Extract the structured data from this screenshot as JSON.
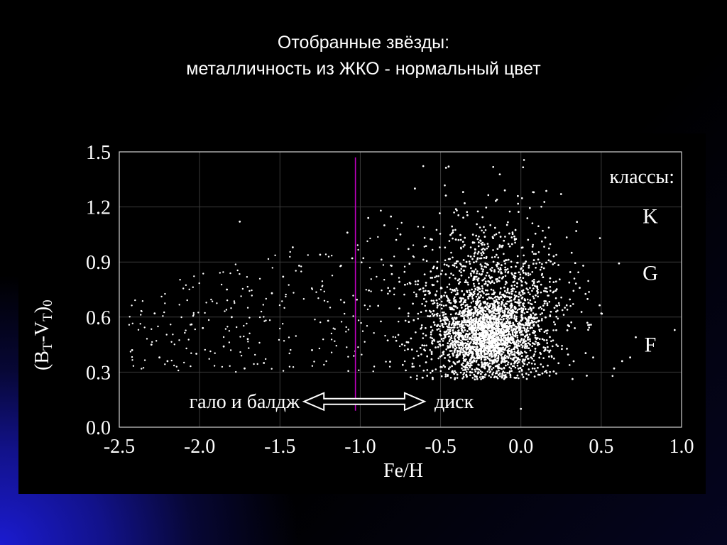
{
  "slide": {
    "title_line1": "Отобранные звёзды:",
    "title_line2": "металличность из ЖКО - нормальный цвет"
  },
  "colors": {
    "background": "#000000",
    "accent_gradient": "#1b1bd0",
    "points": "#ffffff",
    "divider_line": "#c000c0"
  },
  "chart_data": {
    "type": "scatter",
    "xlabel": "Fe/H",
    "ylabel": "(BT-VT)0",
    "xlim": [
      -2.5,
      1.0
    ],
    "ylim": [
      0.0,
      1.5
    ],
    "x_ticks": [
      "-2.5",
      "-2.0",
      "-1.5",
      "-1.0",
      "-0.5",
      "0.0",
      "0.5",
      "1.0"
    ],
    "y_ticks": [
      "0.0",
      "0.3",
      "0.6",
      "0.9",
      "1.2",
      "1.5"
    ],
    "grid": true,
    "divider_x": -1.03,
    "classes_label": "классы:",
    "classes": [
      {
        "label": "K",
        "y": 1.15
      },
      {
        "label": "G",
        "y": 0.84
      },
      {
        "label": "F",
        "y": 0.45
      }
    ],
    "halo_label": "гало и балдж",
    "disk_label": "диск",
    "arrow_x_range": [
      -1.35,
      -0.6
    ],
    "arrow_y": 0.14,
    "series": [
      {
        "cloud_center": [
          -0.2,
          0.55
        ],
        "approx_point_count": 5000,
        "sample_points": [
          [
            -2.42,
            0.42
          ],
          [
            -2.3,
            0.45
          ],
          [
            -2.28,
            0.62
          ],
          [
            -2.25,
            0.38
          ],
          [
            -2.2,
            0.36
          ],
          [
            -2.05,
            0.56
          ],
          [
            -2.02,
            0.4
          ],
          [
            -1.98,
            0.54
          ],
          [
            -1.85,
            0.44
          ],
          [
            -1.83,
            0.75
          ],
          [
            -1.8,
            0.6
          ],
          [
            -1.75,
            1.12
          ],
          [
            -1.72,
            0.32
          ],
          [
            -1.7,
            0.48
          ],
          [
            -1.6,
            0.35
          ],
          [
            -1.55,
            0.73
          ],
          [
            -1.48,
            0.82
          ],
          [
            -1.42,
            0.98
          ],
          [
            -1.38,
            0.88
          ],
          [
            -1.3,
            0.42
          ],
          [
            -1.25,
            0.94
          ],
          [
            -1.2,
            0.58
          ],
          [
            -1.12,
            0.88
          ],
          [
            -1.1,
            0.68
          ],
          [
            -1.08,
            1.06
          ],
          [
            -1.05,
            0.92
          ],
          [
            -0.95,
            1.14
          ],
          [
            -0.85,
            1.1
          ],
          [
            -0.75,
            1.05
          ],
          [
            -0.7,
            0.62
          ],
          [
            -0.66,
            1.3
          ],
          [
            -0.45,
            1.42
          ],
          [
            -0.35,
            1.22
          ],
          [
            -0.2,
            0.5
          ],
          [
            -0.1,
            0.45
          ],
          [
            0.0,
            0.52
          ],
          [
            0.05,
            0.88
          ],
          [
            0.25,
            1.27
          ],
          [
            0.3,
            0.55
          ],
          [
            0.45,
            0.38
          ],
          [
            0.5,
            0.62
          ],
          [
            0.58,
            0.32
          ],
          [
            0.63,
            0.36
          ],
          [
            0.68,
            0.38
          ],
          [
            -0.1,
            1.29
          ],
          [
            0.08,
            1.28
          ],
          [
            -0.25,
            0.42
          ],
          [
            -0.3,
            0.7
          ],
          [
            0.0,
            0.1
          ],
          [
            -0.55,
            0.27
          ]
        ]
      }
    ]
  }
}
